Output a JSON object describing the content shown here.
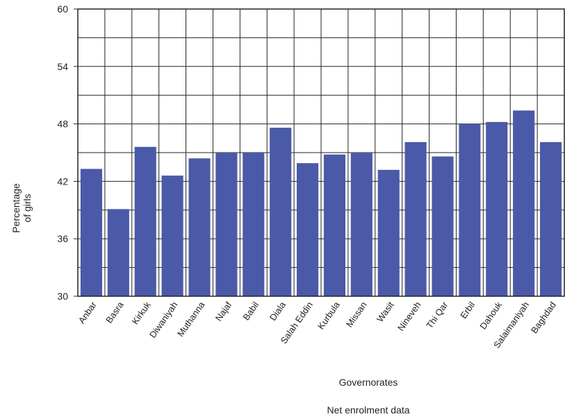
{
  "chart_data": {
    "type": "bar",
    "title": "",
    "xlabel": "Governorates",
    "ylabel": [
      "Percentage",
      "of girls"
    ],
    "caption": "Net enrolment data",
    "ylim": [
      30,
      60
    ],
    "yticks": [
      30,
      36,
      42,
      48,
      54,
      60
    ],
    "grid": true,
    "bar_color": "#4a5aa8",
    "categories": [
      "Anbar",
      "Basra",
      "Kirkuk",
      "Diwaniyah",
      "Muthanna",
      "Najaf",
      "Babil",
      "Diala",
      "Salah Eddin",
      "Kurbula",
      "Missan",
      "Wasit",
      "Nineveh",
      "Thi Qar",
      "Erbil",
      "Dahouk",
      "Salaimaniyah",
      "Baghdad"
    ],
    "values": [
      43.3,
      39.1,
      45.6,
      42.6,
      44.4,
      45.0,
      45.0,
      47.6,
      43.9,
      44.8,
      45.0,
      43.2,
      46.1,
      44.6,
      48.0,
      48.2,
      49.4,
      46.1
    ]
  }
}
